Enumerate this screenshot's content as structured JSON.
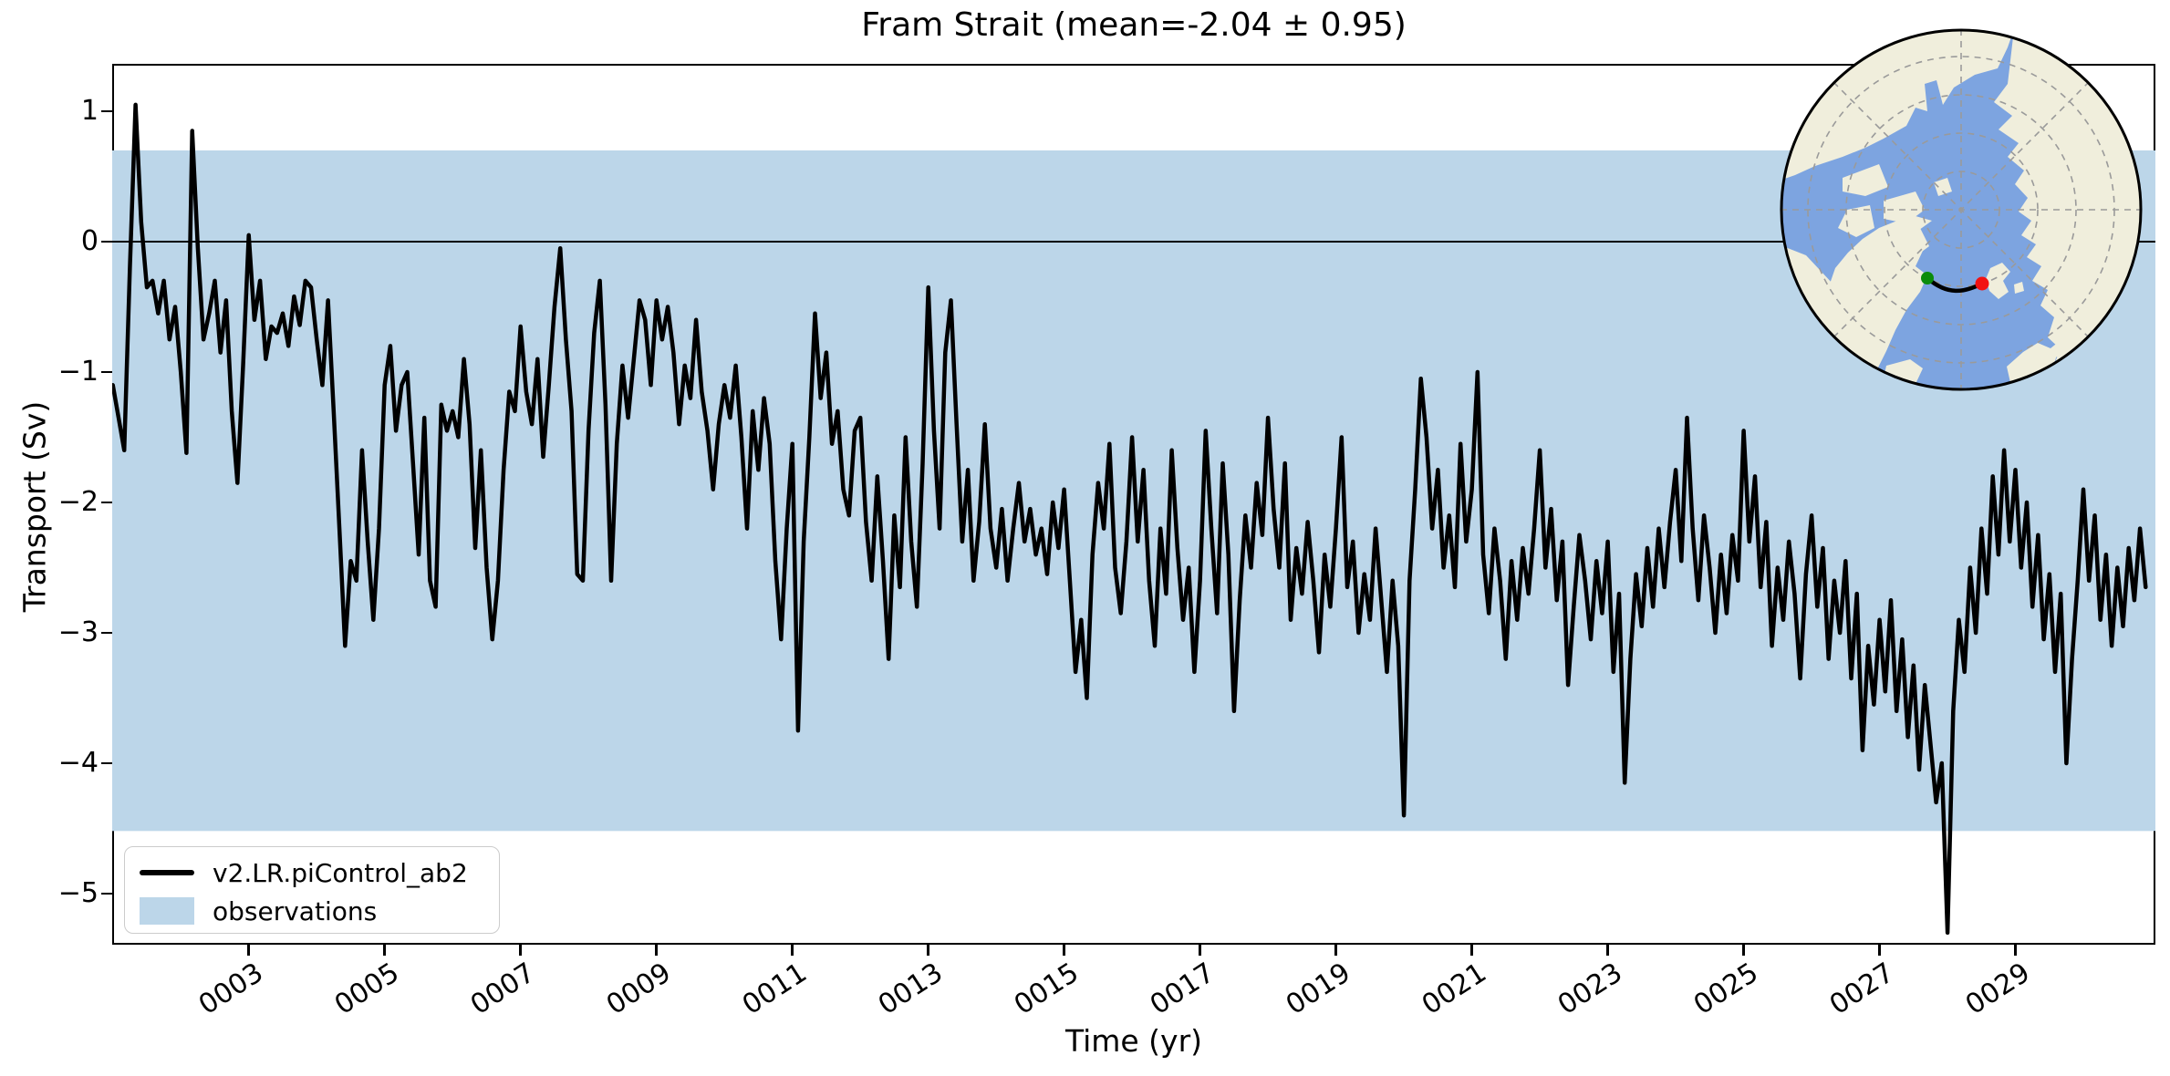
{
  "figure": {
    "title": "Fram Strait (mean=-2.04 ± 0.95)",
    "xlabel": "Time (yr)",
    "ylabel": "Transport (Sv)"
  },
  "legend": {
    "items": [
      {
        "label": "v2.LR.piControl_ab2",
        "swatch": "line",
        "color": "#000000"
      },
      {
        "label": "observations",
        "swatch": "patch",
        "color": "#bcd6e9"
      }
    ]
  },
  "colors": {
    "series_line": "#000000",
    "observations_band": "#bcd6e9",
    "frame": "#000000",
    "background": "#ffffff",
    "map_ocean": "#7da4e0",
    "map_land": "#f0eedc",
    "map_graticule": "#9a9a9a",
    "transect_line": "#000000",
    "start_marker": "#0b8c0b",
    "end_marker": "#f21212"
  },
  "chart_data": {
    "type": "line",
    "title": "Fram Strait (mean=-2.04 ± 0.95)",
    "xlabel": "Time (yr)",
    "ylabel": "Transport (Sv)",
    "grid": false,
    "legend_position": "lower left",
    "xlim": [
      0.99,
      31.06
    ],
    "ylim": [
      -5.392,
      1.364
    ],
    "x_ticks": {
      "values": [
        3,
        5,
        7,
        9,
        11,
        13,
        15,
        17,
        19,
        21,
        23,
        25,
        27,
        29
      ],
      "labels": [
        "0003",
        "0005",
        "0007",
        "0009",
        "0011",
        "0013",
        "0015",
        "0017",
        "0019",
        "0021",
        "0023",
        "0025",
        "0027",
        "0029"
      ]
    },
    "y_ticks": {
      "values": [
        1,
        0,
        -1,
        -2,
        -3,
        -4,
        -5
      ],
      "labels": [
        "1",
        "0",
        "−1",
        "−2",
        "−3",
        "−4",
        "−5"
      ]
    },
    "zero_line": 0,
    "observations_band": {
      "label": "observations",
      "high": 0.7,
      "low": -4.52,
      "color": "#bcd6e9"
    },
    "series": [
      {
        "name": "v2.LR.piControl_ab2",
        "color": "#000000",
        "x_start": 1.0,
        "x_step": 0.0833333,
        "values": [
          -1.1,
          -1.35,
          -1.6,
          -0.2,
          1.05,
          0.15,
          -0.35,
          -0.3,
          -0.55,
          -0.3,
          -0.75,
          -0.5,
          -1.0,
          -1.62,
          0.85,
          -0.05,
          -0.75,
          -0.55,
          -0.3,
          -0.85,
          -0.45,
          -1.3,
          -1.85,
          -0.95,
          0.05,
          -0.6,
          -0.3,
          -0.9,
          -0.65,
          -0.7,
          -0.55,
          -0.8,
          -0.42,
          -0.64,
          -0.3,
          -0.35,
          -0.75,
          -1.1,
          -0.45,
          -1.3,
          -2.2,
          -3.1,
          -2.45,
          -2.6,
          -1.6,
          -2.3,
          -2.9,
          -2.2,
          -1.1,
          -0.8,
          -1.45,
          -1.1,
          -1.0,
          -1.7,
          -2.4,
          -1.35,
          -2.6,
          -2.8,
          -1.25,
          -1.45,
          -1.3,
          -1.5,
          -0.9,
          -1.4,
          -2.35,
          -1.6,
          -2.5,
          -3.05,
          -2.6,
          -1.75,
          -1.15,
          -1.3,
          -0.65,
          -1.15,
          -1.4,
          -0.9,
          -1.65,
          -1.1,
          -0.5,
          -0.05,
          -0.75,
          -1.3,
          -2.55,
          -2.6,
          -1.45,
          -0.7,
          -0.3,
          -1.25,
          -2.6,
          -1.55,
          -0.95,
          -1.35,
          -0.9,
          -0.45,
          -0.6,
          -1.1,
          -0.45,
          -0.75,
          -0.5,
          -0.85,
          -1.4,
          -0.95,
          -1.2,
          -0.6,
          -1.15,
          -1.45,
          -1.9,
          -1.4,
          -1.1,
          -1.35,
          -0.95,
          -1.5,
          -2.2,
          -1.3,
          -1.75,
          -1.2,
          -1.55,
          -2.45,
          -3.05,
          -2.2,
          -1.55,
          -3.75,
          -2.3,
          -1.5,
          -0.55,
          -1.2,
          -0.85,
          -1.55,
          -1.3,
          -1.9,
          -2.1,
          -1.45,
          -1.35,
          -2.15,
          -2.6,
          -1.8,
          -2.45,
          -3.2,
          -2.1,
          -2.65,
          -1.5,
          -2.3,
          -2.8,
          -1.7,
          -0.35,
          -1.45,
          -2.2,
          -0.85,
          -0.45,
          -1.4,
          -2.3,
          -1.75,
          -2.6,
          -2.15,
          -1.4,
          -2.2,
          -2.5,
          -2.05,
          -2.6,
          -2.2,
          -1.85,
          -2.3,
          -2.05,
          -2.4,
          -2.2,
          -2.55,
          -2.0,
          -2.35,
          -1.9,
          -2.6,
          -3.3,
          -2.9,
          -3.5,
          -2.4,
          -1.85,
          -2.2,
          -1.55,
          -2.5,
          -2.85,
          -2.3,
          -1.5,
          -2.3,
          -1.75,
          -2.6,
          -3.1,
          -2.2,
          -2.7,
          -1.6,
          -2.35,
          -2.9,
          -2.5,
          -3.3,
          -2.6,
          -1.45,
          -2.2,
          -2.85,
          -1.7,
          -2.4,
          -3.6,
          -2.75,
          -2.1,
          -2.5,
          -1.85,
          -2.25,
          -1.35,
          -2.05,
          -2.5,
          -1.7,
          -2.9,
          -2.35,
          -2.7,
          -2.15,
          -2.6,
          -3.15,
          -2.4,
          -2.8,
          -2.2,
          -1.5,
          -2.65,
          -2.3,
          -3.0,
          -2.55,
          -2.9,
          -2.2,
          -2.75,
          -3.3,
          -2.6,
          -3.1,
          -4.4,
          -2.6,
          -1.9,
          -1.05,
          -1.5,
          -2.2,
          -1.75,
          -2.5,
          -2.1,
          -2.65,
          -1.55,
          -2.3,
          -1.9,
          -1.0,
          -2.4,
          -2.85,
          -2.2,
          -2.6,
          -3.2,
          -2.45,
          -2.9,
          -2.35,
          -2.7,
          -2.2,
          -1.6,
          -2.5,
          -2.05,
          -2.75,
          -2.3,
          -3.4,
          -2.8,
          -2.25,
          -2.6,
          -3.05,
          -2.45,
          -2.85,
          -2.3,
          -3.3,
          -2.7,
          -4.15,
          -3.2,
          -2.55,
          -2.95,
          -2.35,
          -2.8,
          -2.2,
          -2.65,
          -2.15,
          -1.75,
          -2.45,
          -1.35,
          -2.2,
          -2.75,
          -2.1,
          -2.5,
          -3.0,
          -2.4,
          -2.85,
          -2.25,
          -2.6,
          -1.45,
          -2.3,
          -1.8,
          -2.65,
          -2.15,
          -3.1,
          -2.5,
          -2.9,
          -2.3,
          -2.7,
          -3.35,
          -2.55,
          -2.1,
          -2.8,
          -2.35,
          -3.2,
          -2.6,
          -3.0,
          -2.45,
          -3.35,
          -2.7,
          -3.9,
          -3.1,
          -3.55,
          -2.9,
          -3.45,
          -2.75,
          -3.6,
          -3.05,
          -3.8,
          -3.25,
          -4.05,
          -3.4,
          -3.85,
          -4.3,
          -4.0,
          -5.3,
          -3.6,
          -2.9,
          -3.3,
          -2.5,
          -3.0,
          -2.2,
          -2.7,
          -1.8,
          -2.4,
          -1.6,
          -2.3,
          -1.75,
          -2.5,
          -2.0,
          -2.8,
          -2.25,
          -3.05,
          -2.55,
          -3.3,
          -2.7,
          -4.0,
          -3.2,
          -2.6,
          -1.9,
          -2.6,
          -2.1,
          -2.9,
          -2.4,
          -3.1,
          -2.5,
          -2.95,
          -2.35,
          -2.75,
          -2.2,
          -2.65
        ]
      }
    ]
  },
  "inset_map": {
    "kind": "north-polar-inset"
  }
}
